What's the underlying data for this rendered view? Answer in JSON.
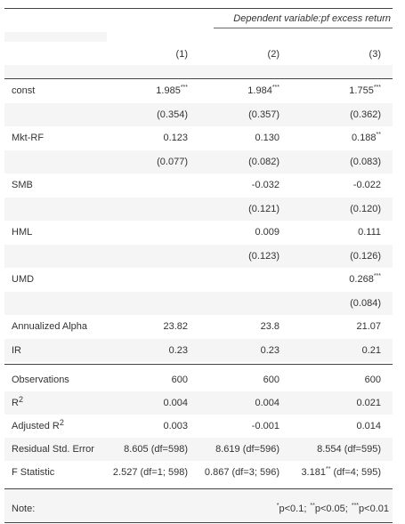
{
  "header": {
    "dependent": "Dependent variable:pf excess return",
    "columns": [
      "(1)",
      "(2)",
      "(3)"
    ]
  },
  "rows": [
    {
      "label": "const",
      "cells": [
        {
          "text": "1.985",
          "stars": "***"
        },
        {
          "text": "1.984",
          "stars": "***"
        },
        {
          "text": "1.755",
          "stars": "***"
        }
      ]
    },
    {
      "cells": [
        {
          "text": "(0.354)"
        },
        {
          "text": "(0.357)"
        },
        {
          "text": "(0.362)"
        }
      ]
    },
    {
      "label": "Mkt-RF",
      "cells": [
        {
          "text": "0.123"
        },
        {
          "text": "0.130"
        },
        {
          "text": "0.188",
          "stars": "**"
        }
      ]
    },
    {
      "cells": [
        {
          "text": "(0.077)"
        },
        {
          "text": "(0.082)"
        },
        {
          "text": "(0.083)"
        }
      ]
    },
    {
      "label": "SMB",
      "cells": [
        null,
        {
          "text": "-0.032"
        },
        {
          "text": "-0.022"
        }
      ]
    },
    {
      "cells": [
        null,
        {
          "text": "(0.121)"
        },
        {
          "text": "(0.120)"
        }
      ]
    },
    {
      "label": "HML",
      "cells": [
        null,
        {
          "text": "0.009"
        },
        {
          "text": "0.111"
        }
      ]
    },
    {
      "cells": [
        null,
        {
          "text": "(0.123)"
        },
        {
          "text": "(0.126)"
        }
      ]
    },
    {
      "label": "UMD",
      "cells": [
        null,
        null,
        {
          "text": "0.268",
          "stars": "***"
        }
      ]
    },
    {
      "cells": [
        null,
        null,
        {
          "text": "(0.084)"
        }
      ]
    },
    {
      "label": "Annualized Alpha",
      "cells": [
        {
          "text": "23.82"
        },
        {
          "text": "23.8"
        },
        {
          "text": "21.07"
        }
      ]
    },
    {
      "label": "IR",
      "cells": [
        {
          "text": "0.23"
        },
        {
          "text": "0.23"
        },
        {
          "text": "0.21"
        }
      ]
    }
  ],
  "stats": [
    {
      "label": "Observations",
      "cells": [
        {
          "text": "600"
        },
        {
          "text": "600"
        },
        {
          "text": "600"
        }
      ]
    },
    {
      "label": "R",
      "label_sup": "2",
      "cells": [
        {
          "text": "0.004"
        },
        {
          "text": "0.004"
        },
        {
          "text": "0.021"
        }
      ]
    },
    {
      "label": "Adjusted R",
      "label_sup": "2",
      "cells": [
        {
          "text": "0.003"
        },
        {
          "text": "-0.001"
        },
        {
          "text": "0.014"
        }
      ]
    },
    {
      "label": "Residual Std. Error",
      "cells": [
        {
          "text": "8.605 (df=598)"
        },
        {
          "text": "8.619 (df=596)"
        },
        {
          "text": "8.554 (df=595)"
        }
      ]
    },
    {
      "label": "F Statistic",
      "cells": [
        {
          "text": "2.527 (df=1; 598)"
        },
        {
          "text": "0.867 (df=3; 596)"
        },
        {
          "text": "3.181",
          "stars": "**",
          "after": " (df=4; 595)"
        }
      ]
    }
  ],
  "note": {
    "label": "Note:",
    "items": [
      {
        "sup": "*",
        "text": "p<0.1;"
      },
      {
        "sup": "**",
        "text": "p<0.05;"
      },
      {
        "sup": "***",
        "text": "p<0.01"
      }
    ]
  }
}
